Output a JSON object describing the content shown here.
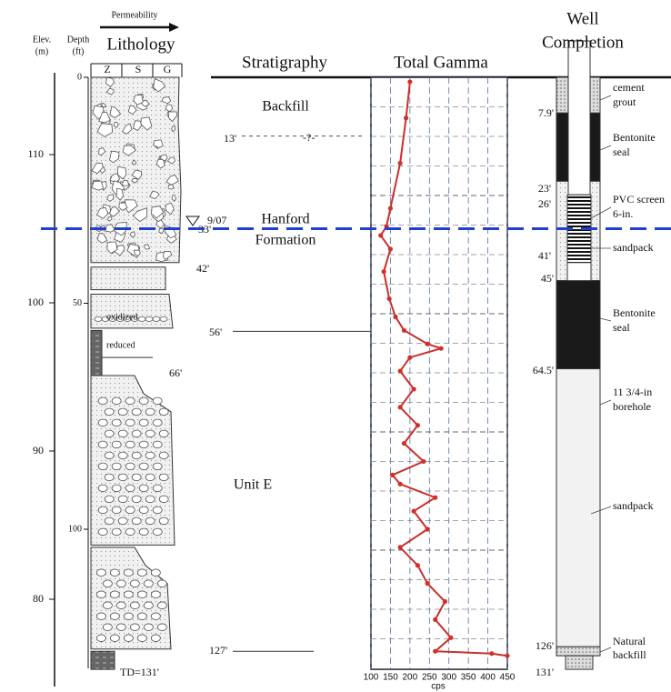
{
  "header": {
    "permeability": "Permeability",
    "lithology": "Lithology",
    "elev": "Elev.",
    "elev_unit": "(m)",
    "depth": "Depth",
    "depth_unit": "(ft)",
    "grain_sizes": [
      "Z",
      "S",
      "G"
    ],
    "stratigraphy": "Stratigraphy",
    "total_gamma": "Total Gamma",
    "well_completion": [
      "Well",
      "Completion"
    ]
  },
  "elevation_ticks": [
    110,
    100,
    90,
    80
  ],
  "depth_ticks": [
    0,
    50,
    100
  ],
  "water_level": {
    "depth_label": "33'",
    "date": "9/07"
  },
  "lithology": {
    "labels": [
      "oxidized",
      "reduced"
    ],
    "contacts": [
      "42'",
      "66'"
    ],
    "td": "TD=131'"
  },
  "stratigraphy": {
    "units": [
      [
        "Backfill"
      ],
      [
        "Hanford",
        "Formation"
      ],
      [
        "Unit E"
      ]
    ],
    "contacts": [
      "13'",
      "56'",
      "127'"
    ],
    "uncertain": "-?-"
  },
  "gamma": {
    "unit": "cps",
    "xlim": [
      100,
      450
    ],
    "xticks": [
      100,
      150,
      200,
      250,
      300,
      350,
      400,
      450
    ],
    "depth_ft": [
      1,
      9,
      19,
      29,
      33,
      35,
      38,
      43,
      49,
      53,
      56,
      59,
      60,
      62,
      65,
      69,
      73,
      77,
      81,
      85,
      88,
      90,
      93,
      96,
      100,
      104,
      108,
      112,
      116,
      120,
      124,
      127,
      127.5,
      128
    ],
    "cps": [
      200,
      190,
      175,
      150,
      140,
      125,
      150,
      133,
      147,
      163,
      185,
      245,
      280,
      200,
      175,
      210,
      175,
      220,
      185,
      235,
      155,
      175,
      265,
      210,
      245,
      175,
      220,
      245,
      290,
      265,
      305,
      265,
      410,
      450
    ]
  },
  "well_completion": {
    "depths": [
      "7.9'",
      "23'",
      "26'",
      "41'",
      "45'",
      "64.5'",
      "126'",
      "131'"
    ],
    "labels": [
      [
        "cement",
        "grout"
      ],
      [
        "Bentonite",
        "seal"
      ],
      [
        "PVC screen",
        "6-in."
      ],
      [
        "sandpack"
      ],
      [
        "Bentonite",
        "seal"
      ],
      [
        "11 3/4-in",
        "borehole"
      ],
      [
        "sandpack"
      ],
      [
        "Natural",
        "backfill"
      ]
    ]
  }
}
